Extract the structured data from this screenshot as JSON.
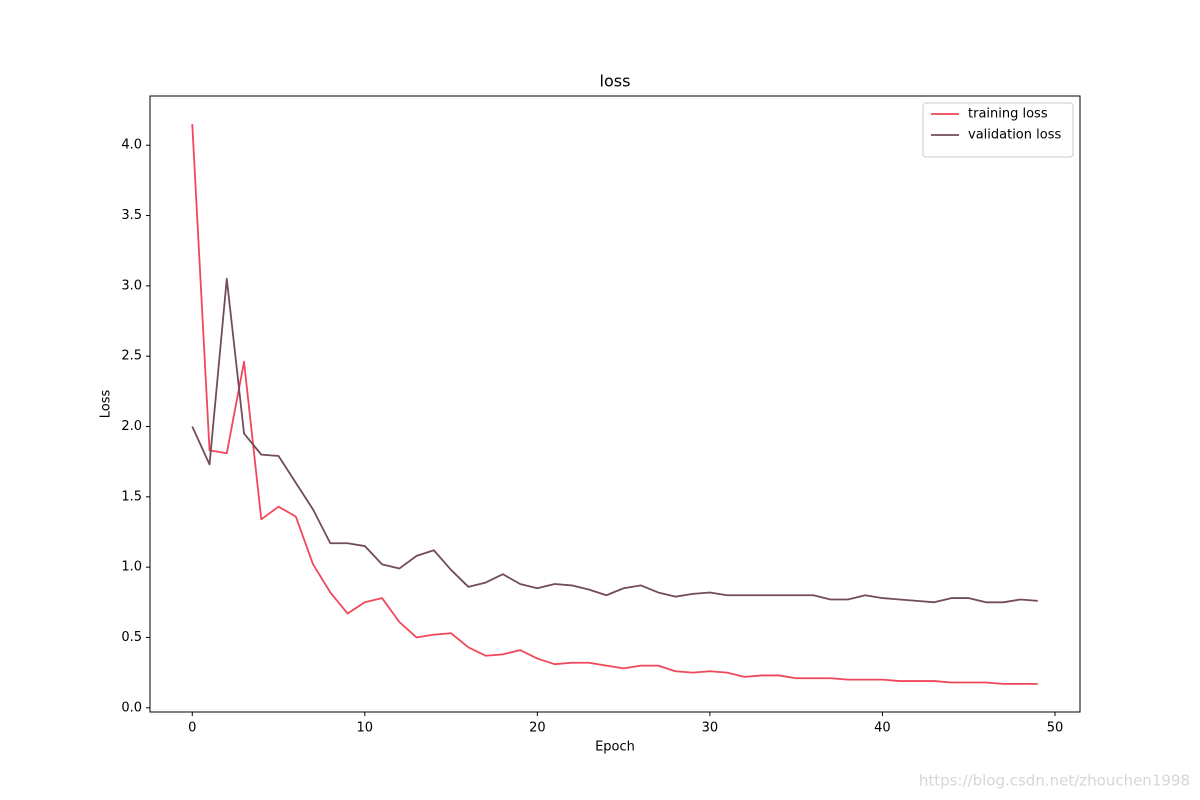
{
  "chart_data": {
    "type": "line",
    "title": "loss",
    "xlabel": "Epoch",
    "ylabel": "Loss",
    "x": [
      0,
      1,
      2,
      3,
      4,
      5,
      6,
      7,
      8,
      9,
      10,
      11,
      12,
      13,
      14,
      15,
      16,
      17,
      18,
      19,
      20,
      21,
      22,
      23,
      24,
      25,
      26,
      27,
      28,
      29,
      30,
      31,
      32,
      33,
      34,
      35,
      36,
      37,
      38,
      39,
      40,
      41,
      42,
      43,
      44,
      45,
      46,
      47,
      48,
      49
    ],
    "series": [
      {
        "name": "training loss",
        "color": "#f0475a",
        "values": [
          4.15,
          1.83,
          1.81,
          2.46,
          1.34,
          1.43,
          1.36,
          1.02,
          0.82,
          0.67,
          0.75,
          0.78,
          0.61,
          0.5,
          0.52,
          0.53,
          0.43,
          0.37,
          0.38,
          0.41,
          0.35,
          0.31,
          0.32,
          0.32,
          0.3,
          0.28,
          0.3,
          0.3,
          0.26,
          0.25,
          0.26,
          0.25,
          0.22,
          0.23,
          0.23,
          0.21,
          0.21,
          0.21,
          0.2,
          0.2,
          0.2,
          0.19,
          0.19,
          0.19,
          0.18,
          0.18,
          0.18,
          0.17,
          0.17,
          0.17
        ]
      },
      {
        "name": "validation loss",
        "color": "#734b5a",
        "values": [
          2.0,
          1.73,
          3.05,
          1.95,
          1.8,
          1.79,
          1.6,
          1.41,
          1.17,
          1.17,
          1.15,
          1.02,
          0.99,
          1.08,
          1.12,
          0.98,
          0.86,
          0.89,
          0.95,
          0.88,
          0.85,
          0.88,
          0.87,
          0.84,
          0.8,
          0.85,
          0.87,
          0.82,
          0.79,
          0.81,
          0.82,
          0.8,
          0.8,
          0.8,
          0.8,
          0.8,
          0.8,
          0.77,
          0.77,
          0.8,
          0.78,
          0.77,
          0.76,
          0.75,
          0.78,
          0.78,
          0.75,
          0.75,
          0.77,
          0.76
        ]
      }
    ],
    "xlim": [
      -2.45,
      51.45
    ],
    "xticks": [
      0,
      10,
      20,
      30,
      40,
      50
    ],
    "ylim": [
      -0.03,
      4.35
    ],
    "yticks": [
      {
        "value": 0,
        "label": "0.0"
      },
      {
        "value": 0.5,
        "label": "0.5"
      },
      {
        "value": 1,
        "label": "1.0"
      },
      {
        "value": 1.5,
        "label": "1.5"
      },
      {
        "value": 2,
        "label": "2.0"
      },
      {
        "value": 2.5,
        "label": "2.5"
      },
      {
        "value": 3,
        "label": "3.0"
      },
      {
        "value": 3.5,
        "label": "3.5"
      },
      {
        "value": 4,
        "label": "4.0"
      }
    ],
    "grid": false,
    "legend": "upper right",
    "watermark": "https://blog.csdn.net/zhouchen1998"
  }
}
